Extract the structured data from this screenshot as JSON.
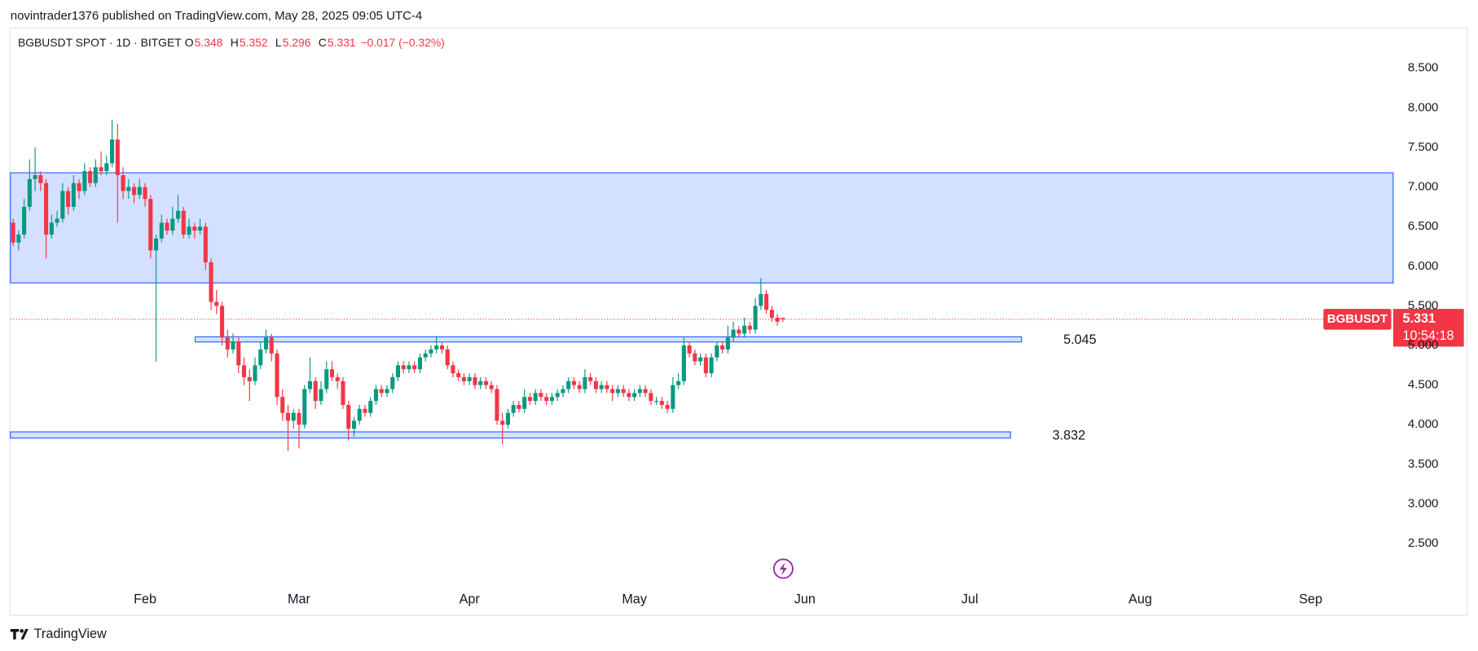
{
  "header": {
    "byline": "novintrader1376 published on TradingView.com, May 28, 2025 09:05 UTC-4",
    "footer": "TradingView"
  },
  "chart_data": {
    "type": "candlestick",
    "symbol": "BGBUSDT SPOT · 1D · BITGET",
    "symbol_short": "BGBUSDT",
    "ohlc_keys": [
      "O",
      "H",
      "L",
      "C"
    ],
    "change": "−0.017 (−0.32%)",
    "countdown": "10:54:18",
    "up_color": "#089981",
    "down_color": "#f23645",
    "open": [
      6.55,
      6.3,
      6.4,
      6.75,
      7.1,
      7.15,
      7.05,
      6.4,
      6.55,
      6.6,
      6.95,
      6.75,
      7.05,
      6.95,
      7.2,
      7.05,
      7.25,
      7.2,
      7.3,
      7.6,
      7.15,
      6.95,
      7.0,
      6.9,
      7.0,
      6.85,
      6.2,
      6.35,
      6.55,
      6.45,
      6.6,
      6.7,
      6.4,
      6.5,
      6.45,
      6.5,
      6.05,
      5.55,
      5.5,
      5.1,
      4.95,
      5.05,
      4.75,
      4.6,
      4.55,
      4.75,
      4.95,
      5.1,
      4.9,
      4.35,
      4.15,
      4.05,
      4.15,
      4.0,
      4.45,
      4.55,
      4.3,
      4.45,
      4.7,
      4.6,
      4.55,
      4.25,
      3.95,
      4.05,
      4.2,
      4.15,
      4.3,
      4.45,
      4.4,
      4.45,
      4.6,
      4.75,
      4.7,
      4.75,
      4.7,
      4.85,
      4.9,
      4.95,
      5.0,
      4.95,
      4.75,
      4.65,
      4.6,
      4.55,
      4.6,
      4.5,
      4.55,
      4.5,
      4.45,
      4.05,
      4.0,
      4.15,
      4.25,
      4.2,
      4.35,
      4.3,
      4.4,
      4.35,
      4.3,
      4.35,
      4.4,
      4.45,
      4.55,
      4.5,
      4.45,
      4.6,
      4.55,
      4.45,
      4.5,
      4.45,
      4.4,
      4.45,
      4.4,
      4.35,
      4.4,
      4.45,
      4.4,
      4.3,
      4.3,
      4.25,
      4.2,
      4.5,
      4.55,
      5.0,
      4.9,
      4.8,
      4.85,
      4.65,
      4.85,
      5.0,
      4.95,
      5.1,
      5.2,
      5.15,
      5.25,
      5.2,
      5.5,
      5.65,
      5.45,
      5.35,
      5.348
    ],
    "high": [
      6.6,
      6.45,
      6.85,
      7.35,
      7.5,
      7.2,
      7.1,
      6.65,
      6.7,
      7.05,
      7.0,
      7.15,
      7.1,
      7.3,
      7.25,
      7.35,
      7.45,
      7.4,
      7.85,
      7.8,
      7.25,
      7.1,
      7.05,
      7.1,
      7.05,
      6.9,
      6.4,
      6.65,
      6.6,
      6.75,
      6.9,
      6.75,
      6.6,
      6.55,
      6.6,
      6.55,
      6.1,
      5.7,
      5.55,
      5.2,
      5.15,
      5.1,
      4.85,
      4.7,
      4.85,
      5.05,
      5.2,
      5.15,
      4.95,
      4.45,
      4.25,
      4.2,
      4.2,
      4.5,
      4.85,
      4.6,
      4.55,
      4.8,
      4.8,
      4.65,
      4.6,
      4.3,
      4.1,
      4.25,
      4.25,
      4.35,
      4.5,
      4.5,
      4.5,
      4.65,
      4.8,
      4.8,
      4.8,
      4.8,
      4.9,
      4.95,
      5.0,
      5.12,
      5.05,
      5.0,
      4.8,
      4.7,
      4.65,
      4.65,
      4.65,
      4.6,
      4.6,
      4.55,
      4.5,
      4.15,
      4.2,
      4.3,
      4.3,
      4.45,
      4.4,
      4.45,
      4.45,
      4.4,
      4.4,
      4.45,
      4.5,
      4.6,
      4.6,
      4.55,
      4.7,
      4.65,
      4.6,
      4.55,
      4.55,
      4.5,
      4.5,
      4.5,
      4.45,
      4.45,
      4.5,
      4.5,
      4.45,
      4.35,
      4.35,
      4.3,
      4.6,
      4.65,
      5.1,
      5.05,
      4.95,
      4.9,
      4.9,
      4.9,
      5.05,
      5.05,
      5.25,
      5.3,
      5.25,
      5.35,
      5.3,
      5.6,
      5.85,
      5.7,
      5.5,
      5.4,
      5.352
    ],
    "low": [
      6.25,
      6.2,
      6.35,
      6.7,
      6.95,
      6.95,
      6.1,
      6.35,
      6.5,
      6.55,
      6.65,
      6.7,
      6.85,
      6.9,
      7.0,
      7.0,
      7.15,
      7.15,
      7.25,
      6.55,
      6.85,
      6.85,
      6.8,
      6.85,
      6.75,
      6.1,
      4.8,
      6.3,
      6.4,
      6.4,
      6.55,
      6.35,
      6.35,
      6.35,
      6.4,
      5.95,
      5.45,
      5.4,
      5.0,
      4.85,
      4.9,
      4.65,
      4.5,
      4.3,
      4.5,
      4.7,
      4.9,
      4.8,
      4.25,
      4.05,
      3.67,
      3.95,
      3.7,
      3.95,
      4.4,
      4.2,
      4.25,
      4.4,
      4.55,
      4.45,
      4.2,
      3.8,
      3.85,
      4.0,
      4.1,
      4.1,
      4.25,
      4.35,
      4.35,
      4.4,
      4.55,
      4.65,
      4.65,
      4.65,
      4.65,
      4.8,
      4.85,
      4.9,
      4.9,
      4.7,
      4.6,
      4.55,
      4.5,
      4.5,
      4.45,
      4.45,
      4.45,
      4.4,
      4.0,
      3.75,
      3.95,
      4.1,
      4.15,
      4.15,
      4.25,
      4.25,
      4.3,
      4.25,
      4.25,
      4.3,
      4.35,
      4.4,
      4.45,
      4.4,
      4.4,
      4.5,
      4.4,
      4.4,
      4.4,
      4.3,
      4.35,
      4.35,
      4.3,
      4.3,
      4.35,
      4.35,
      4.25,
      4.25,
      4.2,
      4.15,
      4.15,
      4.45,
      4.5,
      4.85,
      4.75,
      4.75,
      4.6,
      4.6,
      4.8,
      4.9,
      4.9,
      5.05,
      5.1,
      5.1,
      5.15,
      5.15,
      5.45,
      5.4,
      5.3,
      5.25,
      5.296
    ],
    "close": [
      6.3,
      6.4,
      6.75,
      7.1,
      7.15,
      7.05,
      6.4,
      6.55,
      6.6,
      6.95,
      6.75,
      7.05,
      6.95,
      7.2,
      7.05,
      7.25,
      7.2,
      7.3,
      7.6,
      7.15,
      6.95,
      7.0,
      6.9,
      7.0,
      6.85,
      6.2,
      6.35,
      6.55,
      6.45,
      6.6,
      6.7,
      6.4,
      6.5,
      6.45,
      6.5,
      6.05,
      5.55,
      5.5,
      5.1,
      4.95,
      5.05,
      4.75,
      4.6,
      4.55,
      4.75,
      4.95,
      5.1,
      4.9,
      4.35,
      4.15,
      4.05,
      4.15,
      4.0,
      4.45,
      4.55,
      4.3,
      4.45,
      4.7,
      4.6,
      4.55,
      4.25,
      3.95,
      4.05,
      4.2,
      4.15,
      4.3,
      4.45,
      4.4,
      4.45,
      4.6,
      4.75,
      4.7,
      4.75,
      4.7,
      4.85,
      4.9,
      4.95,
      5.0,
      4.95,
      4.75,
      4.65,
      4.6,
      4.55,
      4.6,
      4.5,
      4.55,
      4.5,
      4.45,
      4.05,
      4.0,
      4.15,
      4.25,
      4.2,
      4.35,
      4.3,
      4.4,
      4.35,
      4.3,
      4.35,
      4.4,
      4.45,
      4.55,
      4.5,
      4.45,
      4.6,
      4.55,
      4.45,
      4.5,
      4.45,
      4.4,
      4.45,
      4.4,
      4.35,
      4.4,
      4.45,
      4.4,
      4.3,
      4.3,
      4.25,
      4.2,
      4.5,
      4.55,
      5.0,
      4.9,
      4.8,
      4.85,
      4.65,
      4.85,
      5.0,
      4.95,
      5.1,
      5.2,
      5.15,
      5.25,
      5.2,
      5.5,
      5.65,
      5.45,
      5.35,
      5.3,
      5.331
    ],
    "xlim": [
      -0.5,
      251
    ],
    "ylim": [
      1.6,
      9.0
    ],
    "xticks": [
      {
        "value": 24,
        "label": "Feb"
      },
      {
        "value": 52,
        "label": "Mar"
      },
      {
        "value": 83,
        "label": "Apr"
      },
      {
        "value": 113,
        "label": "May"
      },
      {
        "value": 144,
        "label": "Jun"
      },
      {
        "value": 174,
        "label": "Jul"
      },
      {
        "value": 205,
        "label": "Aug"
      },
      {
        "value": 236,
        "label": "Sep"
      }
    ],
    "yticks": [
      {
        "value": 2.5,
        "label": "2.500"
      },
      {
        "value": 3,
        "label": "3.000"
      },
      {
        "value": 3.5,
        "label": "3.500"
      },
      {
        "value": 4,
        "label": "4.000"
      },
      {
        "value": 4.5,
        "label": "4.500"
      },
      {
        "value": 5,
        "label": "5.000"
      },
      {
        "value": 5.5,
        "label": "5.500"
      },
      {
        "value": 6,
        "label": "6.000"
      },
      {
        "value": 6.5,
        "label": "6.500"
      },
      {
        "value": 7,
        "label": "7.000"
      },
      {
        "value": 7.5,
        "label": "7.500"
      },
      {
        "value": 8,
        "label": "8.000"
      },
      {
        "value": 8.5,
        "label": "8.500"
      }
    ],
    "zones": [
      {
        "x_range": [
          -0.5,
          251
        ],
        "y_range": [
          5.79,
          7.18
        ],
        "fill": "#d4e0ff",
        "labeled": false
      },
      {
        "x_range": [
          33.1,
          183.4
        ],
        "y_range": [
          5.045,
          5.11
        ],
        "fill": "#d4e0ff",
        "labeled": true
      },
      {
        "x_range": [
          -0.5,
          181.4
        ],
        "y_range": [
          3.832,
          3.91
        ],
        "fill": "#d4e0ff",
        "labeled": true
      }
    ],
    "zone_border": "#2962ff"
  }
}
